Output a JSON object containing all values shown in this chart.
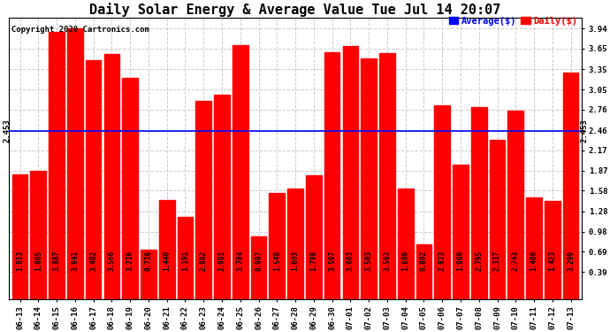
{
  "title": "Daily Solar Energy & Average Value Tue Jul 14 20:07",
  "copyright": "Copyright 2020 Cartronics.com",
  "average_value": 2.453,
  "average_label": "2.453",
  "bar_color": "#ff0000",
  "average_line_color": "#0000ff",
  "categories": [
    "06-13",
    "06-14",
    "06-15",
    "06-16",
    "06-17",
    "06-18",
    "06-19",
    "06-20",
    "06-21",
    "06-22",
    "06-23",
    "06-24",
    "06-25",
    "06-26",
    "06-27",
    "06-28",
    "06-29",
    "06-30",
    "07-01",
    "07-02",
    "07-03",
    "07-04",
    "07-05",
    "07-06",
    "07-07",
    "07-08",
    "07-09",
    "07-10",
    "07-11",
    "07-12",
    "07-13"
  ],
  "values": [
    1.813,
    1.865,
    3.887,
    3.941,
    3.482,
    3.566,
    3.216,
    0.716,
    1.44,
    1.191,
    2.882,
    2.981,
    3.704,
    0.907,
    1.548,
    1.603,
    1.798,
    3.597,
    3.683,
    3.503,
    3.583,
    1.609,
    0.802,
    2.823,
    1.96,
    2.795,
    2.317,
    2.743,
    1.48,
    1.423,
    3.299
  ],
  "yticks": [
    0.39,
    0.69,
    0.98,
    1.28,
    1.58,
    1.87,
    2.17,
    2.46,
    2.76,
    3.05,
    3.35,
    3.65,
    3.94
  ],
  "ylim": [
    0.0,
    4.1
  ],
  "background_color": "#ffffff",
  "grid_color": "#cccccc",
  "title_fontsize": 11,
  "bar_value_fontsize": 5.5,
  "tick_fontsize": 6.5,
  "copyright_fontsize": 6.5,
  "legend_avg_color": "#0000ff",
  "legend_daily_color": "#ff0000"
}
